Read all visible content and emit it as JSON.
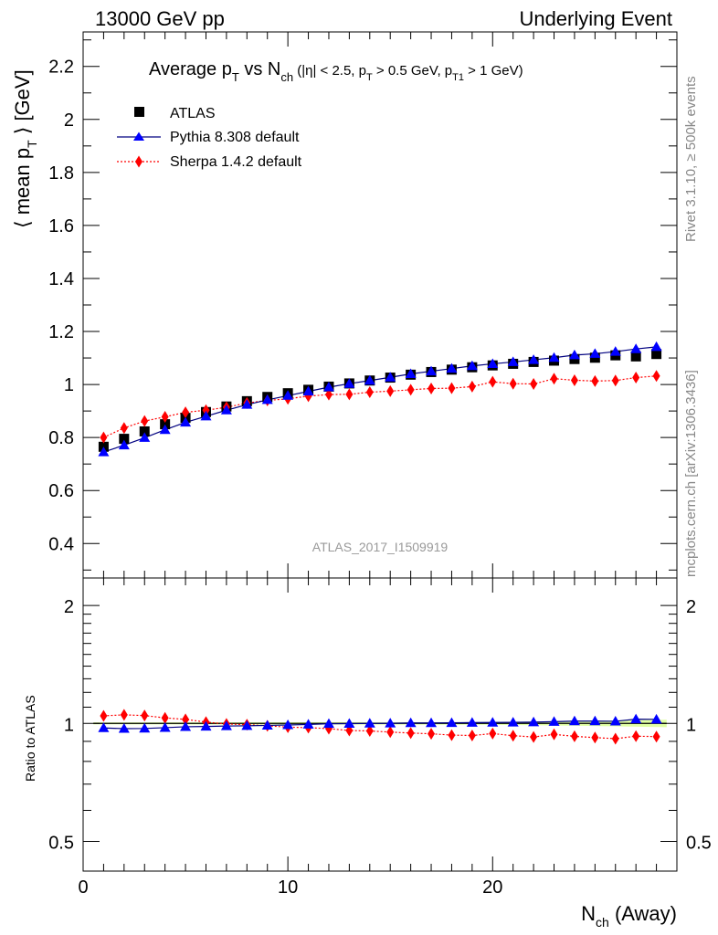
{
  "header": {
    "left": "13000 GeV pp",
    "right": "Underlying Event"
  },
  "title": {
    "main": "Average p",
    "main_sub": "T",
    "vs": " vs N",
    "vs_sub": "ch",
    "cuts": " (|η| < 2.5, p",
    "cuts_sub1": "T",
    "cuts_mid": " > 0.5 GeV, p",
    "cuts_sub2": "T1",
    "cuts_end": " > 1 GeV)"
  },
  "side": {
    "rivet": "Rivet 3.1.10, ≥ 500k events",
    "mcplots": "mcplots.cern.ch [arXiv:1306.3436]"
  },
  "watermark": "ATLAS_2017_I1509919",
  "axes": {
    "ylabel_main": "⟨ mean p",
    "ylabel_main_sub": "T",
    "ylabel_main_end": " ⟩ [GeV]",
    "ylabel_ratio": "Ratio to ATLAS",
    "xlabel": "N",
    "xlabel_sub": "ch",
    "xlabel_end": " (Away)"
  },
  "legend": {
    "items": [
      "ATLAS",
      "Pythia 8.308 default",
      "Sherpa 1.4.2 default"
    ]
  },
  "colors": {
    "atlas": "#000000",
    "pythia": "#0000ff",
    "pythia_line": "#000080",
    "sherpa": "#ff0000",
    "band": "#ccff66"
  },
  "chart_data": {
    "type": "scatter",
    "x": [
      1,
      2,
      3,
      4,
      5,
      6,
      7,
      8,
      9,
      10,
      11,
      12,
      13,
      14,
      15,
      16,
      17,
      18,
      19,
      20,
      21,
      22,
      23,
      24,
      25,
      26,
      27,
      28
    ],
    "xlim": [
      0,
      29
    ],
    "ylim_main": [
      0.27,
      2.33
    ],
    "ylim_ratio": [
      0.42,
      2.35
    ],
    "yscale_ratio": "log",
    "xticks": [
      0,
      10,
      20
    ],
    "yticks_main": [
      0.4,
      0.6,
      0.8,
      1,
      1.2,
      1.4,
      1.6,
      1.8,
      2,
      2.2
    ],
    "yticks_ratio": [
      0.5,
      1,
      2
    ],
    "series": [
      {
        "name": "ATLAS",
        "values": [
          0.765,
          0.795,
          0.823,
          0.85,
          0.874,
          0.896,
          0.917,
          0.937,
          0.953,
          0.967,
          0.98,
          0.992,
          1.004,
          1.015,
          1.026,
          1.037,
          1.047,
          1.056,
          1.065,
          1.072,
          1.078,
          1.085,
          1.09,
          1.096,
          1.101,
          1.11,
          1.106,
          1.115
        ]
      },
      {
        "name": "Pythia 8.308 default",
        "values": [
          0.745,
          0.771,
          0.799,
          0.829,
          0.857,
          0.88,
          0.903,
          0.924,
          0.942,
          0.958,
          0.974,
          0.99,
          1.003,
          1.015,
          1.027,
          1.04,
          1.05,
          1.06,
          1.07,
          1.078,
          1.085,
          1.093,
          1.101,
          1.111,
          1.116,
          1.124,
          1.134,
          1.142
        ]
      },
      {
        "name": "Sherpa 1.4.2 default",
        "values": [
          0.8,
          0.836,
          0.862,
          0.878,
          0.895,
          0.903,
          0.914,
          0.93,
          0.94,
          0.946,
          0.956,
          0.962,
          0.963,
          0.971,
          0.975,
          0.98,
          0.985,
          0.986,
          0.992,
          1.01,
          1.003,
          1.002,
          1.022,
          1.016,
          1.013,
          1.015,
          1.026,
          1.032
        ]
      }
    ]
  }
}
